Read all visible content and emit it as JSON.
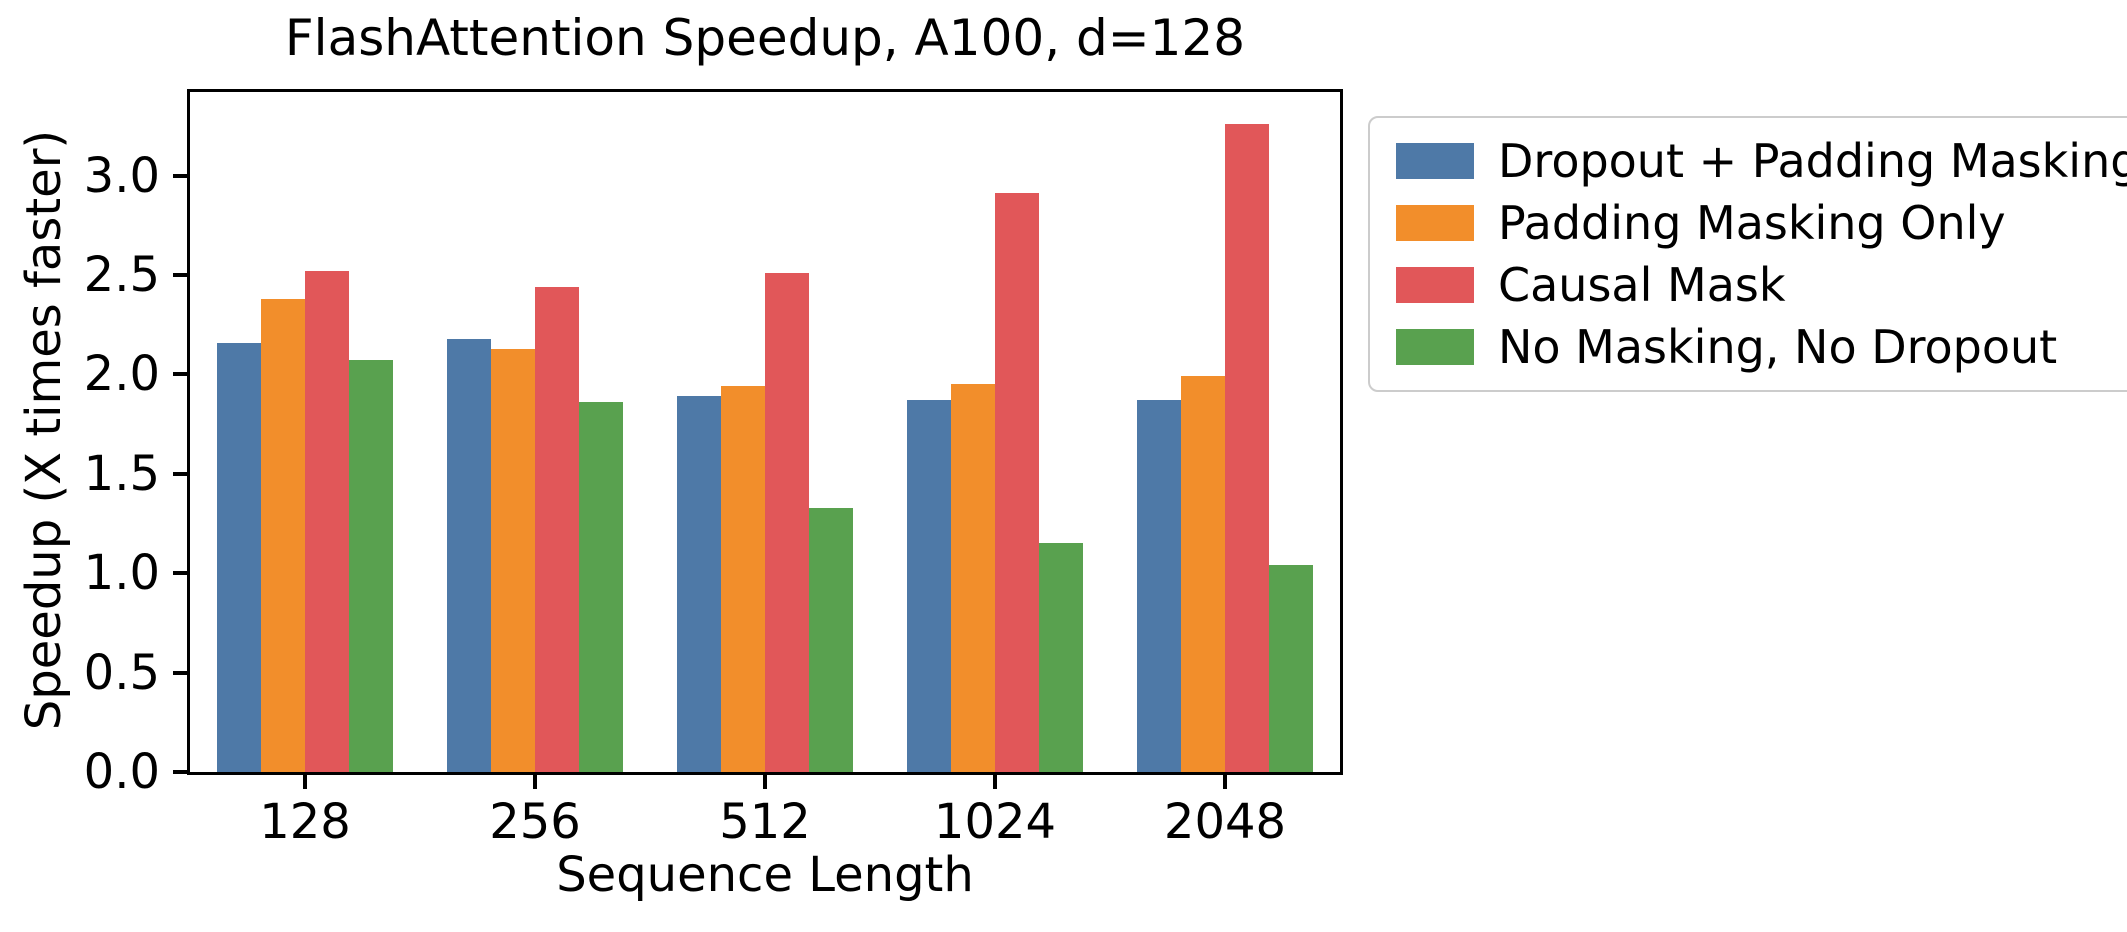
{
  "chart_data": {
    "type": "bar",
    "title": "FlashAttention Speedup, A100, d=128",
    "xlabel": "Sequence Length",
    "ylabel": "Speedup (X times faster)",
    "categories": [
      "128",
      "256",
      "512",
      "1024",
      "2048"
    ],
    "series": [
      {
        "name": "Dropout + Padding Masking",
        "color": "#4E79A7",
        "values": [
          2.16,
          2.18,
          1.89,
          1.87,
          1.87
        ]
      },
      {
        "name": "Padding Masking Only",
        "color": "#F28E2B",
        "values": [
          2.38,
          2.13,
          1.94,
          1.95,
          1.99
        ]
      },
      {
        "name": "Causal Mask",
        "color": "#E15759",
        "values": [
          2.52,
          2.44,
          2.51,
          2.91,
          3.26
        ]
      },
      {
        "name": "No Masking, No Dropout",
        "color": "#59A14F",
        "values": [
          2.07,
          1.86,
          1.33,
          1.15,
          1.04
        ]
      }
    ],
    "ylim": [
      0,
      3.42
    ],
    "yticks": [
      "0.0",
      "0.5",
      "1.0",
      "1.5",
      "2.0",
      "2.5",
      "3.0"
    ],
    "grid": false,
    "legend": {
      "position": "outside-upper-right",
      "border_color": "#cccccc",
      "background": "#ffffff"
    },
    "axis_color": "#000000",
    "text_color": "#000000"
  }
}
